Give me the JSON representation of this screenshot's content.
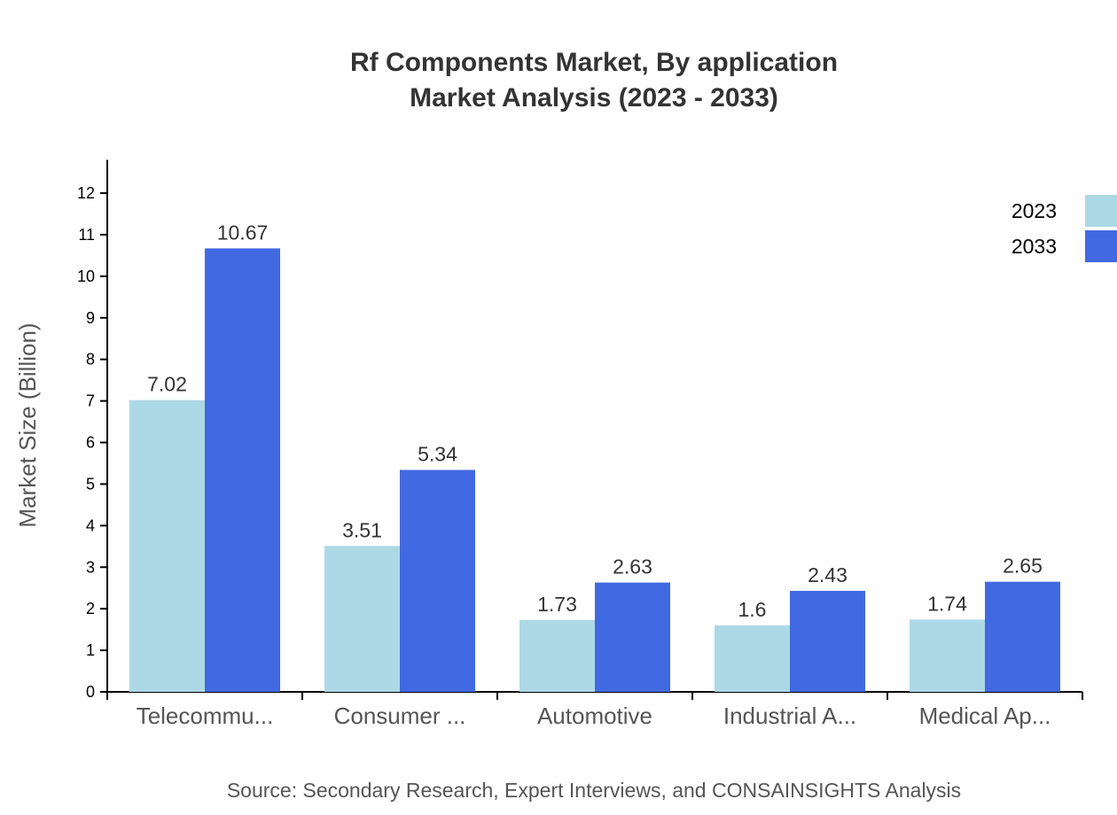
{
  "chart_data": {
    "type": "bar",
    "title": [
      "Rf Components Market, By application",
      "Market Analysis (2023 - 2033)"
    ],
    "xlabel": "",
    "ylabel": "Market Size (Billion)",
    "ylim": [
      0,
      12.8
    ],
    "yticks": [
      0,
      1,
      2,
      3,
      4,
      5,
      6,
      7,
      8,
      9,
      10,
      11,
      12
    ],
    "categories": [
      "Telecommu...",
      "Consumer ...",
      "Automotive",
      "Industrial A...",
      "Medical Ap..."
    ],
    "series": [
      {
        "name": "2023",
        "color": "#add8e6",
        "values": [
          7.02,
          3.51,
          1.73,
          1.6,
          1.74
        ]
      },
      {
        "name": "2033",
        "color": "#4169e1",
        "values": [
          10.67,
          5.34,
          2.63,
          2.43,
          2.65
        ]
      }
    ],
    "legend_position": "top-right",
    "grid": false,
    "source": "Source: Secondary Research, Expert Interviews, and CONSAINSIGHTS Analysis"
  }
}
